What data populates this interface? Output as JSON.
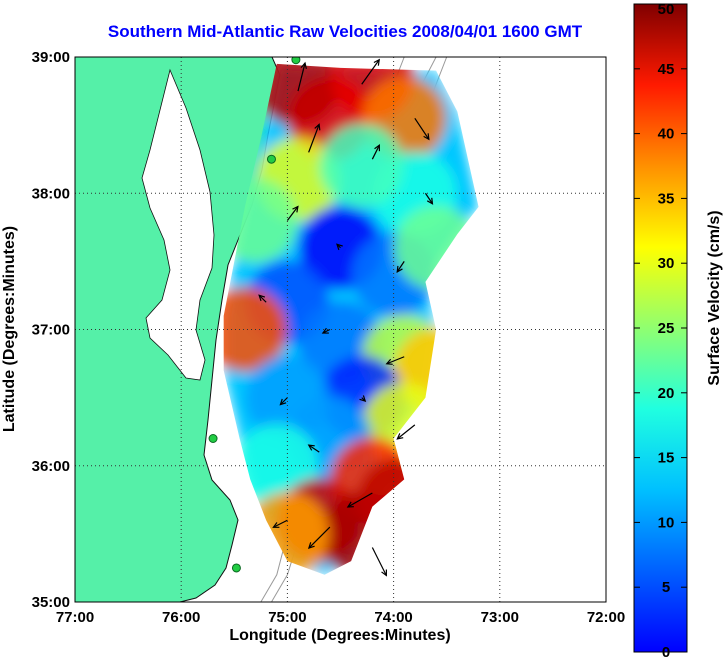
{
  "colors": {
    "land": "#55f0a8",
    "coast": "#111111",
    "isobath": "#9a9a9a",
    "station": "#22cc44",
    "grid": "#333333"
  },
  "chart_data": {
    "type": "heatmap",
    "subtype": "vector-field-over-colormap",
    "title": "Southern Mid-Atlantic Raw Velocities 2008/04/01 1600 GMT",
    "xlabel": "Longitude (Degrees:Minutes)",
    "ylabel": "Latitude (Degrees:Minutes)",
    "xlim": [
      -77,
      -72
    ],
    "ylim": [
      35,
      39
    ],
    "x_ticks": [
      {
        "value": -77,
        "label": "77:00"
      },
      {
        "value": -76,
        "label": "76:00"
      },
      {
        "value": -75,
        "label": "75:00"
      },
      {
        "value": -74,
        "label": "74:00"
      },
      {
        "value": -73,
        "label": "73:00"
      },
      {
        "value": -72,
        "label": "72:00"
      }
    ],
    "y_ticks": [
      {
        "value": 35,
        "label": "35:00"
      },
      {
        "value": 36,
        "label": "36:00"
      },
      {
        "value": 37,
        "label": "37:00"
      },
      {
        "value": 38,
        "label": "38:00"
      },
      {
        "value": 39,
        "label": "39:00"
      }
    ],
    "grid": "dotted",
    "colorbar": {
      "label": "Surface Velocity (cm/s)",
      "range": [
        0,
        50
      ],
      "ticks": [
        0,
        5,
        10,
        15,
        20,
        25,
        30,
        35,
        40,
        45,
        50
      ],
      "colormap": "jet"
    },
    "field_regions": [
      {
        "lon": -74.6,
        "lat": 38.55,
        "speed": 44
      },
      {
        "lon": -74.9,
        "lat": 38.8,
        "speed": 47
      },
      {
        "lon": -74.2,
        "lat": 38.85,
        "speed": 45
      },
      {
        "lon": -73.9,
        "lat": 38.55,
        "speed": 38
      },
      {
        "lon": -74.9,
        "lat": 38.1,
        "speed": 30
      },
      {
        "lon": -73.8,
        "lat": 38.0,
        "speed": 20
      },
      {
        "lon": -74.3,
        "lat": 38.2,
        "speed": 22
      },
      {
        "lon": -75.3,
        "lat": 37.8,
        "speed": 24
      },
      {
        "lon": -74.5,
        "lat": 37.6,
        "speed": 6
      },
      {
        "lon": -74.0,
        "lat": 37.4,
        "speed": 12
      },
      {
        "lon": -73.6,
        "lat": 37.6,
        "speed": 24
      },
      {
        "lon": -75.0,
        "lat": 37.2,
        "speed": 10
      },
      {
        "lon": -75.4,
        "lat": 37.0,
        "speed": 40
      },
      {
        "lon": -74.5,
        "lat": 36.9,
        "speed": 12
      },
      {
        "lon": -73.9,
        "lat": 36.8,
        "speed": 28
      },
      {
        "lon": -73.6,
        "lat": 36.7,
        "speed": 34
      },
      {
        "lon": -74.3,
        "lat": 36.5,
        "speed": 8
      },
      {
        "lon": -75.0,
        "lat": 36.5,
        "speed": 14
      },
      {
        "lon": -73.9,
        "lat": 36.3,
        "speed": 30
      },
      {
        "lon": -74.6,
        "lat": 36.2,
        "speed": 14
      },
      {
        "lon": -75.1,
        "lat": 36.0,
        "speed": 20
      },
      {
        "lon": -74.2,
        "lat": 35.9,
        "speed": 42
      },
      {
        "lon": -74.7,
        "lat": 35.6,
        "speed": 46
      },
      {
        "lon": -74.3,
        "lat": 35.5,
        "speed": 48
      },
      {
        "lon": -75.0,
        "lat": 35.5,
        "speed": 36
      },
      {
        "lon": -73.95,
        "lat": 35.75,
        "speed": 47
      }
    ],
    "vectors": [
      {
        "lon": -74.9,
        "lat": 38.75,
        "u": 10,
        "v": 40
      },
      {
        "lon": -74.3,
        "lat": 38.8,
        "u": 25,
        "v": 35
      },
      {
        "lon": -73.8,
        "lat": 38.55,
        "u": 20,
        "v": -30
      },
      {
        "lon": -74.8,
        "lat": 38.3,
        "u": 15,
        "v": 40
      },
      {
        "lon": -74.2,
        "lat": 38.25,
        "u": 10,
        "v": 20
      },
      {
        "lon": -73.7,
        "lat": 38.0,
        "u": 10,
        "v": -15
      },
      {
        "lon": -75.0,
        "lat": 37.8,
        "u": 15,
        "v": 20
      },
      {
        "lon": -74.5,
        "lat": 37.6,
        "u": -5,
        "v": 5
      },
      {
        "lon": -73.9,
        "lat": 37.5,
        "u": -10,
        "v": -15
      },
      {
        "lon": -75.2,
        "lat": 37.2,
        "u": -10,
        "v": 10
      },
      {
        "lon": -74.6,
        "lat": 37.0,
        "u": -10,
        "v": -5
      },
      {
        "lon": -73.9,
        "lat": 36.8,
        "u": -25,
        "v": -10
      },
      {
        "lon": -75.0,
        "lat": 36.5,
        "u": -10,
        "v": -10
      },
      {
        "lon": -74.3,
        "lat": 36.5,
        "u": 5,
        "v": -5
      },
      {
        "lon": -73.8,
        "lat": 36.3,
        "u": -25,
        "v": -20
      },
      {
        "lon": -74.7,
        "lat": 36.1,
        "u": -15,
        "v": 10
      },
      {
        "lon": -74.2,
        "lat": 35.8,
        "u": -35,
        "v": -20
      },
      {
        "lon": -74.6,
        "lat": 35.55,
        "u": -30,
        "v": -30
      },
      {
        "lon": -74.2,
        "lat": 35.4,
        "u": 20,
        "v": -40
      },
      {
        "lon": -75.0,
        "lat": 35.6,
        "u": -20,
        "v": -10
      }
    ],
    "coverage_outline": [
      [
        -75.1,
        38.95
      ],
      [
        -74.5,
        38.92
      ],
      [
        -73.6,
        38.9
      ],
      [
        -73.4,
        38.6
      ],
      [
        -73.2,
        37.9
      ],
      [
        -73.4,
        37.7
      ],
      [
        -73.7,
        37.35
      ],
      [
        -73.6,
        37.0
      ],
      [
        -73.7,
        36.5
      ],
      [
        -74.0,
        36.2
      ],
      [
        -73.9,
        35.9
      ],
      [
        -74.2,
        35.7
      ],
      [
        -74.4,
        35.3
      ],
      [
        -74.65,
        35.2
      ],
      [
        -75.0,
        35.3
      ],
      [
        -75.2,
        35.6
      ],
      [
        -75.35,
        35.9
      ],
      [
        -75.45,
        36.2
      ],
      [
        -75.6,
        36.7
      ],
      [
        -75.6,
        37.1
      ],
      [
        -75.5,
        37.5
      ],
      [
        -75.4,
        37.9
      ],
      [
        -75.25,
        38.4
      ],
      [
        -75.1,
        38.95
      ]
    ],
    "stations": [
      {
        "lon": -74.92,
        "lat": 38.98
      },
      {
        "lon": -75.15,
        "lat": 38.25
      },
      {
        "lon": -75.7,
        "lat": 36.2
      },
      {
        "lon": -75.48,
        "lat": 35.25
      }
    ],
    "isobaths": [
      [
        [
          -73.9,
          39.0
        ],
        [
          -74.1,
          38.6
        ],
        [
          -74.3,
          38.3
        ],
        [
          -74.45,
          38.0
        ],
        [
          -74.55,
          37.6
        ],
        [
          -74.7,
          37.3
        ],
        [
          -74.75,
          37.0
        ],
        [
          -74.8,
          36.6
        ],
        [
          -74.85,
          36.2
        ],
        [
          -74.9,
          35.8
        ],
        [
          -75.0,
          35.5
        ],
        [
          -75.1,
          35.2
        ],
        [
          -75.25,
          35.0
        ]
      ],
      [
        [
          -73.6,
          39.0
        ],
        [
          -73.8,
          38.7
        ],
        [
          -74.0,
          38.4
        ],
        [
          -74.25,
          38.1
        ],
        [
          -74.35,
          37.7
        ],
        [
          -74.55,
          37.2
        ],
        [
          -74.6,
          36.8
        ],
        [
          -74.7,
          36.3
        ],
        [
          -74.8,
          35.8
        ],
        [
          -74.9,
          35.45
        ],
        [
          -75.0,
          35.2
        ],
        [
          -75.15,
          35.0
        ]
      ],
      [
        [
          -73.5,
          39.0
        ],
        [
          -73.7,
          38.6
        ],
        [
          -73.95,
          38.3
        ],
        [
          -74.1,
          38.0
        ],
        [
          -74.2,
          37.7
        ]
      ]
    ]
  }
}
